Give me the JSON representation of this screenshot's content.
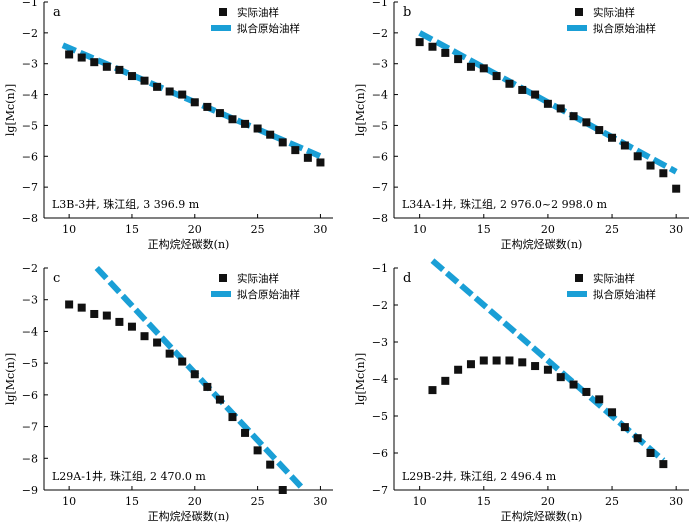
{
  "legend": {
    "actual_label": "实际油样",
    "fit_label": "拟合原始油样"
  },
  "axis_labels": {
    "xlabel": "正构烷烃碳数(n)",
    "ylabel": "lg[Mc(n)]"
  },
  "colors": {
    "actual": "#111111",
    "fit": "#1a9fd6",
    "axis": "#000000"
  },
  "chart_data": [
    {
      "type": "scatter",
      "panel": "a",
      "annotation": "L3B-3井, 珠江组, 3 396.9 m",
      "xlim": [
        8,
        31
      ],
      "ylim": [
        -8,
        -1
      ],
      "xticks": [
        10,
        15,
        20,
        25,
        30
      ],
      "yticks": [
        -1,
        -2,
        -3,
        -4,
        -5,
        -6,
        -7,
        -8
      ],
      "legend_position": "top-right",
      "actual": {
        "x": [
          10,
          11,
          12,
          13,
          14,
          15,
          16,
          17,
          18,
          19,
          20,
          21,
          22,
          23,
          24,
          25,
          26,
          27,
          28,
          29,
          30
        ],
        "y": [
          -2.7,
          -2.8,
          -2.95,
          -3.1,
          -3.2,
          -3.4,
          -3.55,
          -3.75,
          -3.9,
          -4.0,
          -4.25,
          -4.4,
          -4.6,
          -4.8,
          -4.95,
          -5.1,
          -5.3,
          -5.55,
          -5.8,
          -6.05,
          -6.2
        ]
      },
      "fit": {
        "x": [
          9.5,
          30.0
        ],
        "y": [
          -2.4,
          -6.0
        ]
      }
    },
    {
      "type": "scatter",
      "panel": "b",
      "annotation": "L34A-1井, 珠江组, 2 976.0~2 998.0 m",
      "xlim": [
        8,
        31
      ],
      "ylim": [
        -8,
        -1
      ],
      "xticks": [
        10,
        15,
        20,
        25,
        30
      ],
      "yticks": [
        -1,
        -2,
        -3,
        -4,
        -5,
        -6,
        -7,
        -8
      ],
      "legend_position": "top-right",
      "actual": {
        "x": [
          10,
          11,
          12,
          13,
          14,
          15,
          16,
          17,
          18,
          19,
          20,
          21,
          22,
          23,
          24,
          25,
          26,
          27,
          28,
          29,
          30
        ],
        "y": [
          -2.3,
          -2.45,
          -2.65,
          -2.85,
          -3.1,
          -3.15,
          -3.4,
          -3.65,
          -3.85,
          -4.0,
          -4.3,
          -4.45,
          -4.7,
          -4.9,
          -5.15,
          -5.4,
          -5.65,
          -6.0,
          -6.3,
          -6.55,
          -7.05
        ]
      },
      "fit": {
        "x": [
          10.0,
          30.0
        ],
        "y": [
          -2.0,
          -6.5
        ]
      }
    },
    {
      "type": "scatter",
      "panel": "c",
      "annotation": "L29A-1井, 珠江组, 2 470.0 m",
      "xlim": [
        8,
        31
      ],
      "ylim": [
        -9,
        -2
      ],
      "xticks": [
        10,
        15,
        20,
        25,
        30
      ],
      "yticks": [
        -2,
        -3,
        -4,
        -5,
        -6,
        -7,
        -8,
        -9
      ],
      "legend_position": "top-right",
      "actual": {
        "x": [
          10,
          11,
          12,
          13,
          14,
          15,
          16,
          17,
          18,
          19,
          20,
          21,
          22,
          23,
          24,
          25,
          26,
          27
        ],
        "y": [
          -3.15,
          -3.25,
          -3.45,
          -3.5,
          -3.7,
          -3.85,
          -4.15,
          -4.35,
          -4.7,
          -4.95,
          -5.35,
          -5.75,
          -6.15,
          -6.7,
          -7.2,
          -7.75,
          -8.2,
          -9.0
        ]
      },
      "fit": {
        "x": [
          12.2,
          28.7
        ],
        "y": [
          -2.0,
          -9.0
        ]
      }
    },
    {
      "type": "scatter",
      "panel": "d",
      "annotation": "L29B-2井, 珠江组, 2 496.4 m",
      "xlim": [
        8,
        31
      ],
      "ylim": [
        -7,
        -1
      ],
      "xticks": [
        10,
        15,
        20,
        25,
        30
      ],
      "yticks": [
        -1,
        -2,
        -3,
        -4,
        -5,
        -6,
        -7
      ],
      "legend_position": "top-right",
      "actual": {
        "x": [
          11,
          12,
          13,
          14,
          15,
          16,
          17,
          18,
          19,
          20,
          21,
          22,
          23,
          24,
          25,
          26,
          27,
          28,
          29
        ],
        "y": [
          -4.3,
          -4.05,
          -3.75,
          -3.6,
          -3.5,
          -3.5,
          -3.5,
          -3.55,
          -3.65,
          -3.75,
          -3.95,
          -4.15,
          -4.35,
          -4.55,
          -4.9,
          -5.3,
          -5.6,
          -6.0,
          -6.3
        ]
      },
      "fit": {
        "x": [
          11.0,
          29.0
        ],
        "y": [
          -0.8,
          -6.2
        ]
      }
    }
  ]
}
